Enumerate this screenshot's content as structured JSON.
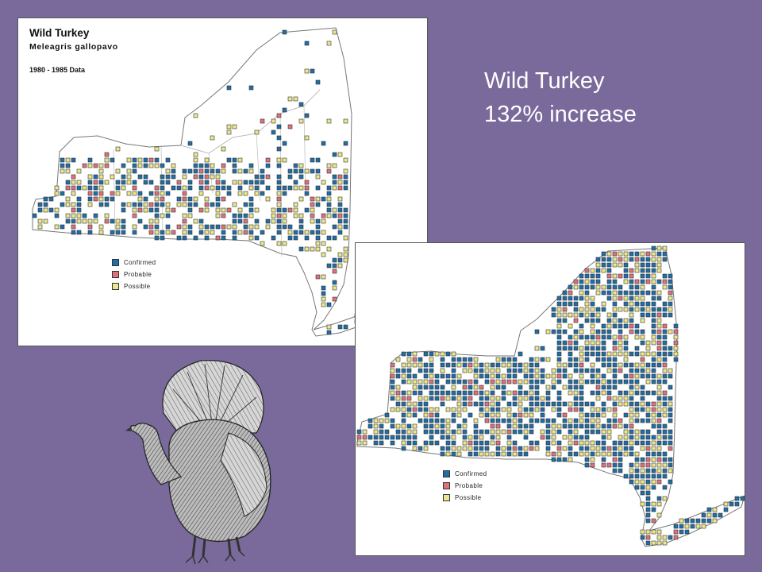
{
  "slide": {
    "headline": "Wild Turkey",
    "subline": "132% increase"
  },
  "map_1980": {
    "title": "Wild Turkey",
    "scientific_name": "Meleagris gallopavo",
    "period": "1980 - 1985 Data"
  },
  "legend": {
    "items": [
      {
        "label": "Confirmed",
        "color": "#1f6ea8"
      },
      {
        "label": "Probable",
        "color": "#e0717c"
      },
      {
        "label": "Possible",
        "color": "#ece88a"
      }
    ]
  },
  "colors": {
    "background": "#7a6a9c",
    "confirmed": "#1f6ea8",
    "probable": "#e0717c",
    "possible": "#ece88a"
  },
  "illustration": {
    "icon": "wild-turkey-illustration"
  }
}
